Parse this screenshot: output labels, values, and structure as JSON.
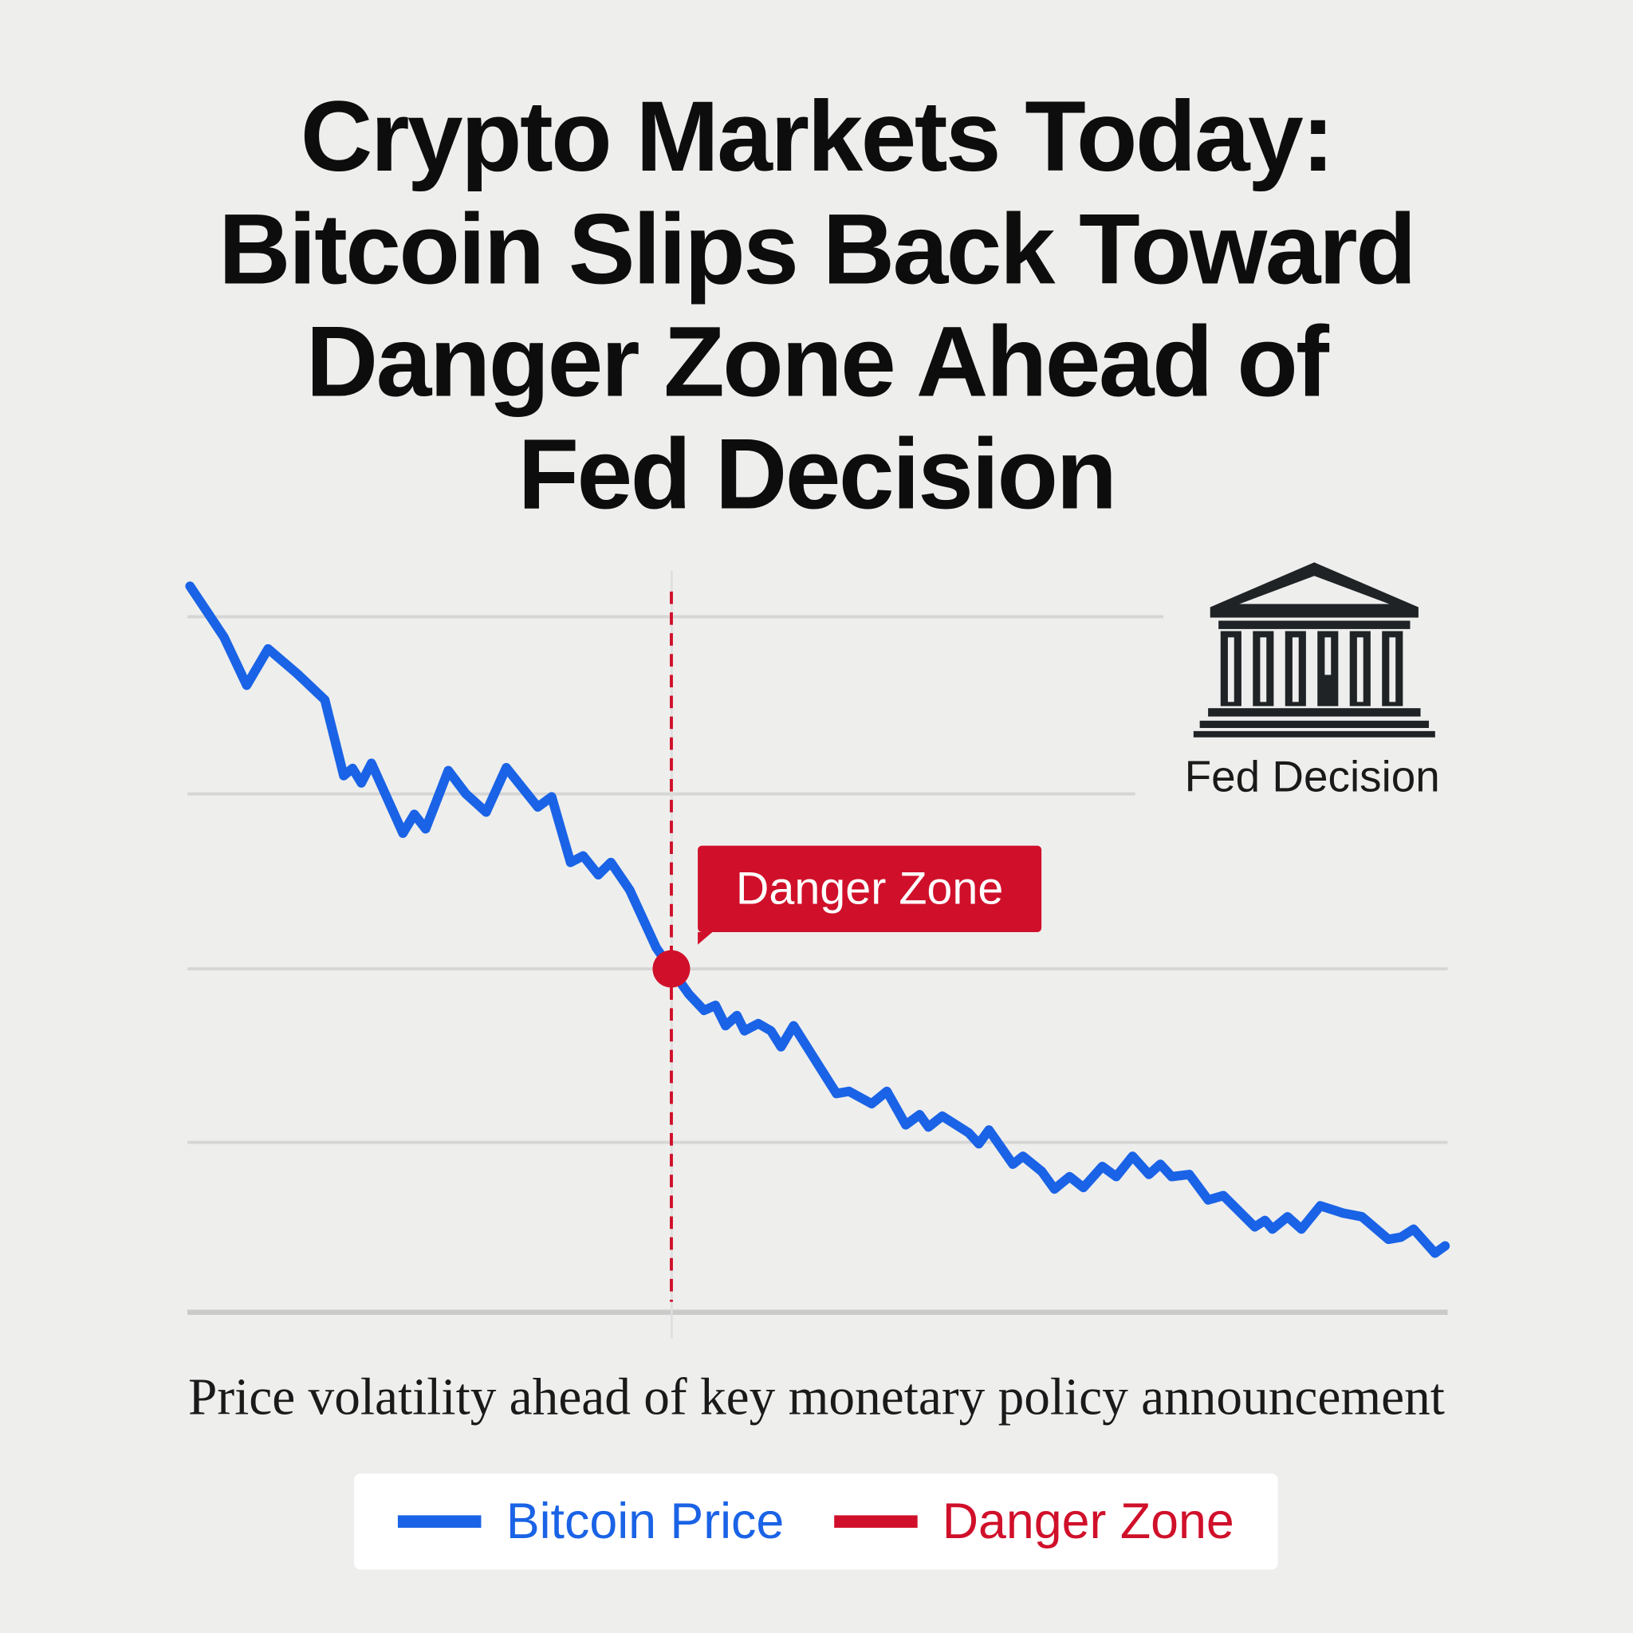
{
  "title_lines": [
    "Crypto Markets Today:",
    "Bitcoin Slips Back Toward",
    "Danger Zone Ahead of",
    "Fed Decision"
  ],
  "subtitle": "Price volatility ahead of key monetary policy announcement",
  "fed_label": "Fed Decision",
  "fed_icon": "bank-building-icon",
  "colors": {
    "bitcoin": "#1a63e6",
    "danger": "#d0102a",
    "grid": "#d2d2d2",
    "background": "#eeeeed"
  },
  "chart_data": {
    "type": "line",
    "title": "",
    "xlabel": "",
    "ylabel": "",
    "xlim": [
      0,
      100
    ],
    "ylim": [
      0,
      100
    ],
    "grid": true,
    "gridlines_y": [
      95.4,
      71.1,
      47.1,
      23.3,
      0
    ],
    "legend_placement": "bottom",
    "legend": [
      "Bitcoin Price",
      "Danger Zone"
    ],
    "series": [
      {
        "name": "Bitcoin Price",
        "x": [
          0.2,
          2.9,
          4.7,
          6.4,
          8.7,
          10.9,
          12.4,
          13.1,
          13.8,
          14.6,
          17.1,
          18.0,
          18.9,
          20.7,
          22.1,
          23.7,
          25.3,
          27.8,
          28.9,
          30.4,
          31.4,
          32.6,
          33.6,
          35.1,
          37.2,
          38.4,
          39.8,
          41.0,
          41.9,
          42.7,
          43.6,
          44.2,
          45.3,
          46.3,
          47.1,
          48.1,
          51.5,
          52.5,
          54.3,
          55.5,
          57.0,
          58.1,
          58.8,
          59.9,
          62.0,
          62.8,
          63.6,
          65.5,
          66.3,
          67.8,
          68.8,
          70.0,
          71.1,
          72.6,
          73.7,
          75.0,
          76.3,
          77.2,
          78.1,
          79.5,
          81.0,
          82.2,
          84.7,
          85.5,
          86.1,
          87.3,
          88.4,
          89.9,
          91.7,
          93.2,
          95.3,
          96.3,
          97.3,
          99.0,
          99.8
        ],
        "y": [
          99.6,
          92.6,
          86,
          91,
          87.6,
          84,
          73.6,
          74.6,
          72.6,
          75.3,
          65.7,
          68.3,
          66.3,
          74.3,
          71.1,
          68.6,
          74.7,
          69.3,
          70.7,
          61.7,
          62.6,
          60,
          61.7,
          57.9,
          50,
          47,
          43.6,
          41.4,
          42.1,
          39.3,
          40.7,
          38.6,
          39.6,
          38.6,
          36.4,
          39.3,
          30,
          30.3,
          28.6,
          30.3,
          25.7,
          27.1,
          25.4,
          26.9,
          24.6,
          23.1,
          25,
          20.3,
          21.4,
          19.3,
          16.9,
          18.6,
          17.1,
          20,
          18.6,
          21.4,
          18.9,
          20.3,
          18.6,
          18.9,
          15.4,
          16,
          11.7,
          12.6,
          11.4,
          13.1,
          11.4,
          14.6,
          13.6,
          13.1,
          10,
          10.3,
          11.4,
          8.1,
          9.1
        ]
      }
    ],
    "annotations": [
      {
        "type": "vertical-dashed-line",
        "x": 38.4,
        "label": "Danger Zone"
      },
      {
        "type": "marker",
        "x": 38.4,
        "y": 47.1
      }
    ]
  },
  "legend_items": [
    {
      "label": "Bitcoin Price"
    },
    {
      "label": "Danger Zone"
    }
  ]
}
